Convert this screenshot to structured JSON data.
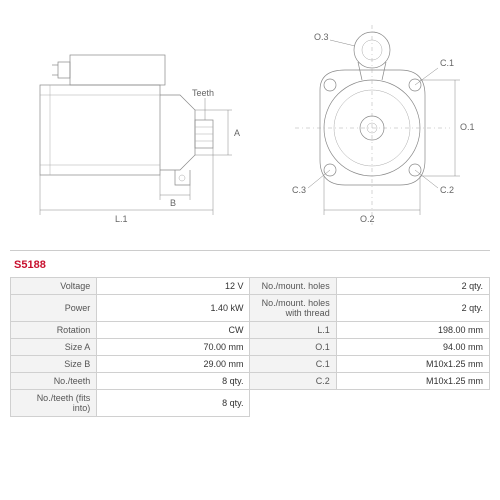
{
  "product_code": "S5188",
  "diagram": {
    "type": "engineering-drawing",
    "views": [
      "side",
      "front"
    ],
    "labels": {
      "L1": "L.1",
      "B": "B",
      "A": "A",
      "Teeth": "Teeth",
      "O1": "O.1",
      "O2": "O.2",
      "O3": "O.3",
      "C1": "C.1",
      "C2": "C.2",
      "C3": "C.3"
    },
    "stroke_color": "#888888",
    "thin_stroke": "#aaaaaa",
    "background": "#ffffff"
  },
  "specs": {
    "rows": [
      {
        "l1": "Voltage",
        "v1": "12 V",
        "l2": "No./mount. holes",
        "v2": "2 qty."
      },
      {
        "l1": "Power",
        "v1": "1.40 kW",
        "l2": "No./mount. holes with thread",
        "v2": "2 qty."
      },
      {
        "l1": "Rotation",
        "v1": "CW",
        "l2": "L.1",
        "v2": "198.00 mm"
      },
      {
        "l1": "Size A",
        "v1": "70.00 mm",
        "l2": "O.1",
        "v2": "94.00 mm"
      },
      {
        "l1": "Size B",
        "v1": "29.00 mm",
        "l2": "C.1",
        "v2": "M10x1.25 mm"
      },
      {
        "l1": "No./teeth",
        "v1": "8 qty.",
        "l2": "C.2",
        "v2": "M10x1.25 mm"
      },
      {
        "l1": "No./teeth (fits into)",
        "v1": "8 qty.",
        "l2": "",
        "v2": ""
      }
    ],
    "label_bg": "#f3f3f3",
    "value_bg": "#ffffff",
    "border_color": "#d0d0d0",
    "font_size": 9
  }
}
